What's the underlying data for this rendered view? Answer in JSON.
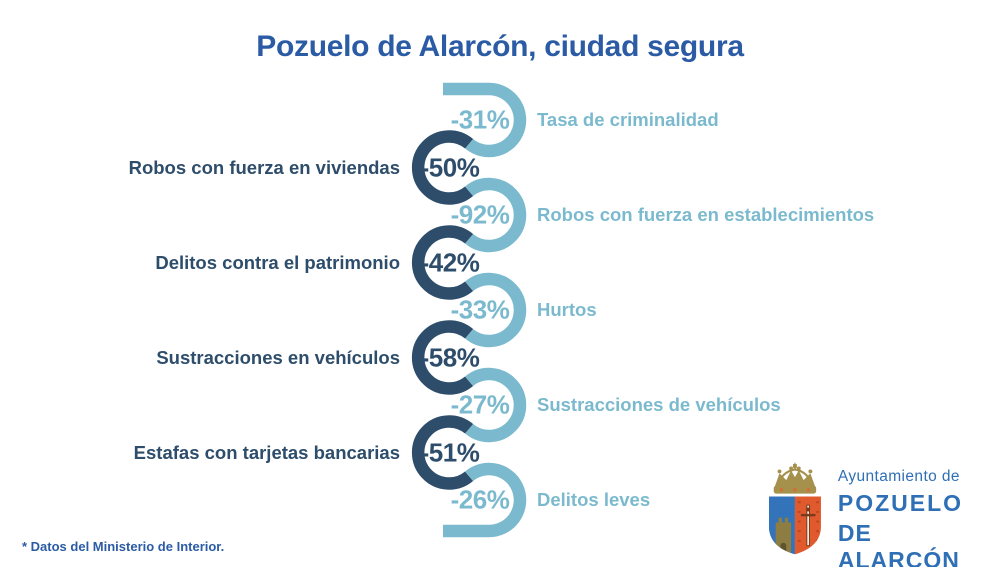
{
  "title": "Pozuelo de Alarcón, ciudad segura",
  "footnote": "* Datos del Ministerio de Interior.",
  "colors": {
    "chain_light": "#7bbace",
    "chain_dark": "#2d4d6b",
    "title_blue": "#2b5ba5",
    "logo_blue": "#2f6fb5",
    "shield_blue": "#3373b9",
    "shield_orange": "#e05a2d",
    "crown_gold": "#a6914c",
    "tower_olive": "#8d7d42"
  },
  "chart_data": {
    "type": "chain-infographic",
    "title": "Pozuelo de Alarcón, ciudad segura",
    "source": "* Datos del Ministerio de Interior.",
    "unit": "percent change",
    "items": [
      {
        "value": "-31%",
        "numeric": -31,
        "label": "Tasa de criminalidad",
        "side": "right",
        "tone": "light"
      },
      {
        "value": "-50%",
        "numeric": -50,
        "label": "Robos con fuerza en viviendas",
        "side": "left",
        "tone": "dark"
      },
      {
        "value": "-92%",
        "numeric": -92,
        "label": "Robos con fuerza en establecimientos",
        "side": "right",
        "tone": "light"
      },
      {
        "value": "-42%",
        "numeric": -42,
        "label": "Delitos contra el patrimonio",
        "side": "left",
        "tone": "dark"
      },
      {
        "value": "-33%",
        "numeric": -33,
        "label": "Hurtos",
        "side": "right",
        "tone": "light"
      },
      {
        "value": "-58%",
        "numeric": -58,
        "label": "Sustracciones en vehículos",
        "side": "left",
        "tone": "dark"
      },
      {
        "value": "-27%",
        "numeric": -27,
        "label": "Sustracciones de vehículos",
        "side": "right",
        "tone": "light"
      },
      {
        "value": "-51%",
        "numeric": -51,
        "label": "Estafas con tarjetas bancarias",
        "side": "left",
        "tone": "dark"
      },
      {
        "value": "-26%",
        "numeric": -26,
        "label": "Delitos leves",
        "side": "right",
        "tone": "light"
      }
    ]
  },
  "logo": {
    "line1": "Ayuntamiento de",
    "line2": "POZUELO",
    "line3": "DE ALARCÓN"
  }
}
